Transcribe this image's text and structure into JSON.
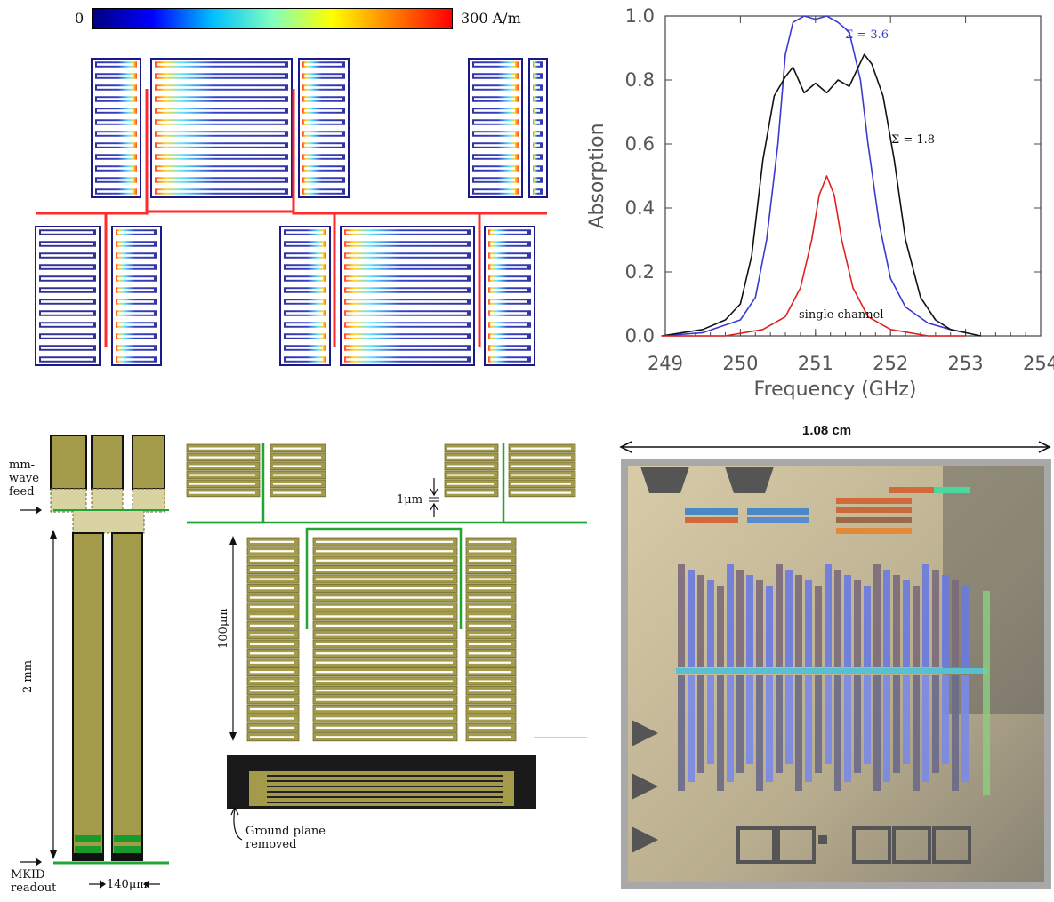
{
  "colorbar": {
    "min_label": "0",
    "max_label": "300 A/m",
    "stops": [
      "#00007f",
      "#0000ff",
      "#00bfff",
      "#7fffbf",
      "#ffff00",
      "#ff7f00",
      "#ff0000"
    ]
  },
  "chart_data": {
    "type": "line",
    "xlabel": "Frequency (GHz)",
    "ylabel": "Absorption",
    "xlim": [
      249,
      254
    ],
    "ylim": [
      0,
      1.0
    ],
    "xticks": [
      "249",
      "250",
      "251",
      "252",
      "253",
      "254"
    ],
    "yticks": [
      "0.0",
      "0.2",
      "0.4",
      "0.6",
      "0.8",
      "1.0"
    ],
    "series": [
      {
        "name": "Σ = 3.6",
        "color": "#3a3ad0",
        "x": [
          248.95,
          249.5,
          250.0,
          250.2,
          250.35,
          250.5,
          250.6,
          250.7,
          250.85,
          251.0,
          251.15,
          251.3,
          251.45,
          251.6,
          251.7,
          251.85,
          252.0,
          252.2,
          252.5,
          252.8,
          253.0
        ],
        "y": [
          0.0,
          0.01,
          0.05,
          0.12,
          0.3,
          0.6,
          0.88,
          0.98,
          1.0,
          0.99,
          1.0,
          0.98,
          0.95,
          0.8,
          0.6,
          0.35,
          0.18,
          0.09,
          0.04,
          0.02,
          0.01
        ]
      },
      {
        "name": "Σ = 1.8",
        "color": "#111111",
        "x": [
          248.95,
          249.5,
          249.8,
          250.0,
          250.15,
          250.3,
          250.45,
          250.6,
          250.7,
          250.85,
          251.0,
          251.15,
          251.3,
          251.45,
          251.55,
          251.65,
          251.75,
          251.9,
          252.05,
          252.2,
          252.4,
          252.6,
          252.8,
          253.0,
          253.2
        ],
        "y": [
          0.0,
          0.02,
          0.05,
          0.1,
          0.25,
          0.55,
          0.75,
          0.81,
          0.84,
          0.76,
          0.79,
          0.76,
          0.8,
          0.78,
          0.83,
          0.88,
          0.85,
          0.75,
          0.55,
          0.3,
          0.12,
          0.05,
          0.02,
          0.01,
          0.0
        ]
      },
      {
        "name": "single channel",
        "color": "#e02020",
        "x": [
          248.95,
          249.8,
          250.3,
          250.6,
          250.8,
          250.95,
          251.05,
          251.15,
          251.25,
          251.35,
          251.5,
          251.7,
          252.0,
          252.5,
          253.0
        ],
        "y": [
          0.0,
          0.0,
          0.02,
          0.06,
          0.15,
          0.3,
          0.44,
          0.5,
          0.44,
          0.3,
          0.15,
          0.06,
          0.02,
          0.0,
          0.0
        ]
      }
    ],
    "annotations": [
      "Σ = 3.6",
      "Σ = 1.8",
      "single channel"
    ]
  },
  "layout_drawing": {
    "labels": {
      "feed": "mm-\nwave\nfeed",
      "length": "2 mm",
      "readout": "MKID\nreadout",
      "width": "140μm",
      "gap": "1μm",
      "height": "100μm",
      "ground": "Ground plane\nremoved"
    }
  },
  "photo": {
    "scale_label": "1.08 cm"
  }
}
